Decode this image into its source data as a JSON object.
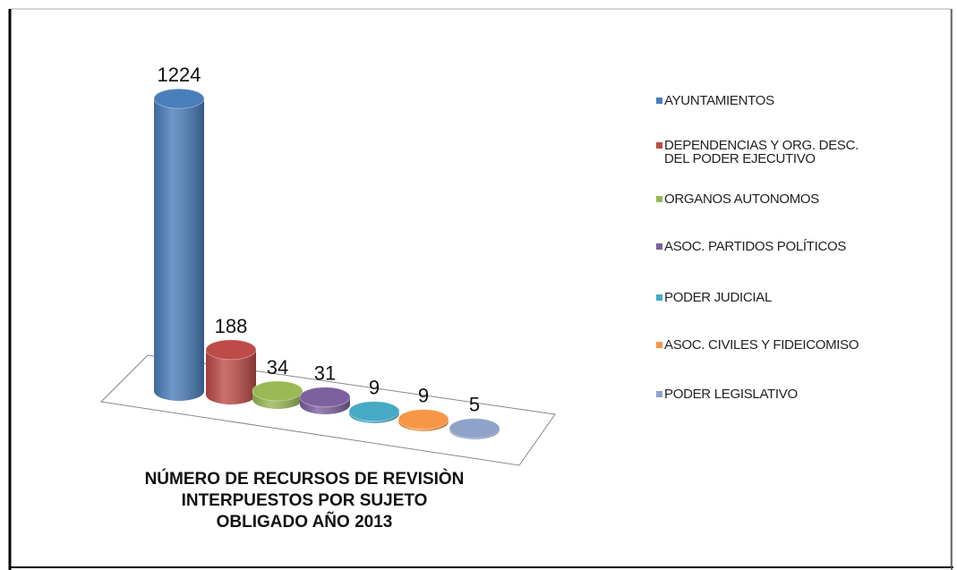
{
  "chart_data": {
    "type": "cylinder",
    "title": "NÚMERO DE RECURSOS DE REVISIÒN INTERPUESTOS POR SUJETO OBLIGADO AÑO 2013",
    "categories": [
      "AYUNTAMIENTOS",
      "DEPENDENCIAS Y ORG. DESC. DEL PODER EJECUTIVO",
      "ORGANOS AUTONOMOS",
      "ASOC. PARTIDOS POLÍTICOS",
      "PODER JUDICIAL",
      "ASOC. CIVILES Y FIDEICOMISO",
      "PODER LEGISLATIVO"
    ],
    "values": [
      1224,
      188,
      34,
      31,
      9,
      9,
      5
    ],
    "colors": [
      "#4a7ebb",
      "#be4b48",
      "#98b954",
      "#7d60a0",
      "#46aac5",
      "#f79646",
      "#8fa3c9"
    ],
    "legend": "right"
  }
}
